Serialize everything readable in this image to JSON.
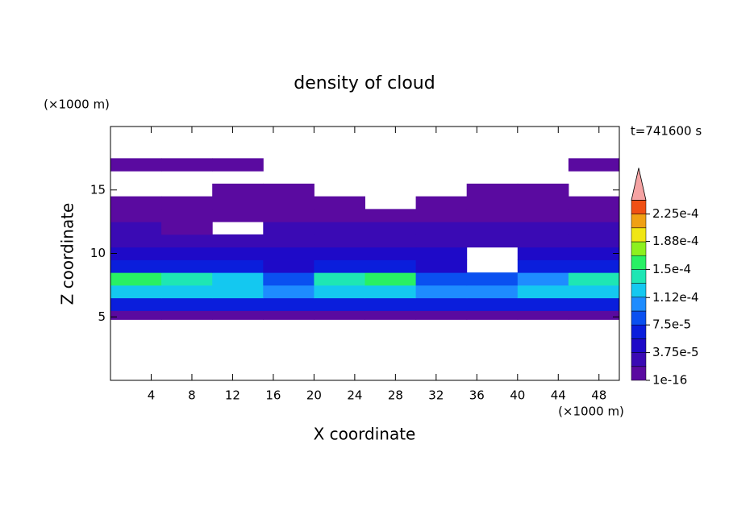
{
  "chart_data": {
    "type": "contour",
    "title": "density of cloud",
    "x_label": "X coordinate",
    "y_label": "Z coordinate",
    "x_unit": "(×1000 m)",
    "y_unit": "(×1000 m)",
    "annotation": "t=741600 s",
    "xlim": [
      0,
      50
    ],
    "xticks": [
      4,
      8,
      12,
      16,
      20,
      24,
      28,
      32,
      36,
      40,
      44,
      48
    ],
    "ylim": [
      0,
      20
    ],
    "yticks": [
      5,
      10,
      15
    ],
    "x_edges": [
      0,
      5,
      10,
      15,
      20,
      25,
      30,
      35,
      40,
      45,
      50
    ],
    "z_edges": [
      4.8,
      5.5,
      6.5,
      7.5,
      8.5,
      9.5,
      10.5,
      11.5,
      12.5,
      13.5,
      14.5,
      15.5,
      16.5,
      17.5
    ],
    "values": [
      [
        1e-05,
        1e-05,
        1e-05,
        1e-05,
        1e-05,
        1e-05,
        1e-05,
        1e-05,
        1e-05,
        1e-05
      ],
      [
        6e-05,
        6e-05,
        6e-05,
        6e-05,
        6e-05,
        6e-05,
        6e-05,
        6e-05,
        6e-05,
        6e-05
      ],
      [
        0.00012,
        0.00012,
        0.00012,
        0.0001,
        0.00012,
        0.00012,
        0.0001,
        0.0001,
        0.00012,
        0.00012
      ],
      [
        0.00016,
        0.00014,
        0.00012,
        8e-05,
        0.00014,
        0.00016,
        8e-05,
        8e-05,
        0.0001,
        0.00014
      ],
      [
        6e-05,
        6e-05,
        6e-05,
        4e-05,
        6e-05,
        6e-05,
        4e-05,
        null,
        6e-05,
        6e-05
      ],
      [
        4e-05,
        4e-05,
        4e-05,
        4e-05,
        4e-05,
        4e-05,
        4e-05,
        null,
        4e-05,
        4e-05
      ],
      [
        2.5e-05,
        2.5e-05,
        2.5e-05,
        2.5e-05,
        2.5e-05,
        2.5e-05,
        2.5e-05,
        2.5e-05,
        2.5e-05,
        2.5e-05
      ],
      [
        2.5e-05,
        1e-05,
        null,
        2.5e-05,
        2.5e-05,
        2.5e-05,
        2.5e-05,
        2.5e-05,
        2.5e-05,
        2.5e-05
      ],
      [
        1e-05,
        1e-05,
        1e-05,
        1e-05,
        1e-05,
        1e-05,
        1e-05,
        1e-05,
        1e-05,
        1e-05
      ],
      [
        1e-05,
        1e-05,
        1e-05,
        1e-05,
        1e-05,
        null,
        1e-05,
        1e-05,
        1e-05,
        1e-05
      ],
      [
        null,
        null,
        1e-05,
        1e-05,
        null,
        null,
        null,
        1e-05,
        1e-05,
        null
      ],
      [
        null,
        null,
        null,
        null,
        null,
        null,
        null,
        null,
        null,
        null
      ],
      [
        1e-05,
        1e-05,
        1e-05,
        null,
        null,
        null,
        null,
        null,
        null,
        1e-05
      ]
    ],
    "colorbar": {
      "levels": [
        1e-16,
        1.875e-05,
        3.75e-05,
        5.625e-05,
        7.5e-05,
        9.375e-05,
        0.0001125,
        0.00013125,
        0.00015,
        0.00016875,
        0.0001875,
        0.00020625,
        0.000225,
        0.00024375
      ],
      "colors": [
        "#5a0aa0",
        "#3a0ab4",
        "#1e0ac8",
        "#0a1edc",
        "#0a50f0",
        "#1e8cff",
        "#14c8f0",
        "#1ee6b4",
        "#28f064",
        "#8cf01e",
        "#f0e614",
        "#f0a014",
        "#f05014"
      ],
      "extend_color": "#f5a3a3",
      "ticks": [
        1e-16,
        {
          "value": 3.75e-05,
          "label": "3.75e-5"
        },
        {
          "value": 7.5e-05,
          "label": "7.5e-5"
        },
        {
          "value": 0.000112,
          "label": "1.12e-4"
        },
        {
          "value": 0.00015,
          "label": "1.5e-4"
        },
        {
          "value": 0.000188,
          "label": "1.88e-4"
        },
        {
          "value": 0.000225,
          "label": "2.25e-4"
        }
      ]
    }
  }
}
